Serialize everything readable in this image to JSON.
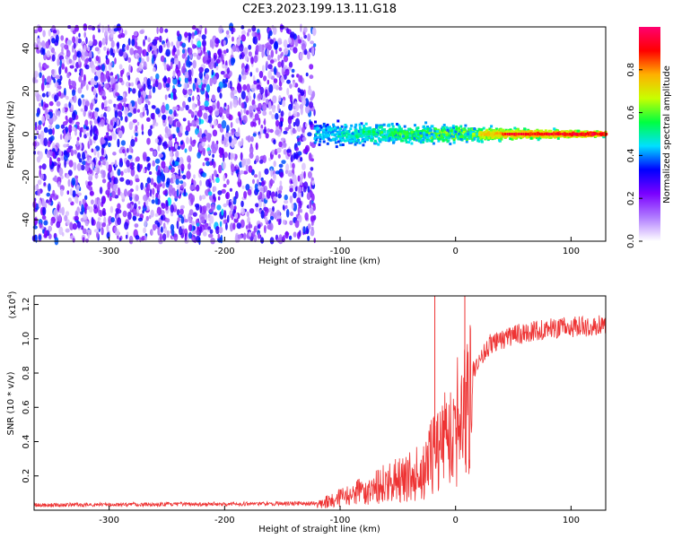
{
  "title": "C2E3.2023.199.13.11.G18",
  "chart_data": [
    {
      "type": "heatmap",
      "name": "spectrogram",
      "xlabel": "Height of straight line (km)",
      "ylabel": "Frequency (Hz)",
      "xlim": [
        -365,
        130
      ],
      "ylim": [
        -50,
        50
      ],
      "xticks": [
        -300,
        -200,
        -100,
        0,
        100
      ],
      "xtick_labels": [
        "-300",
        "-200",
        "-100",
        "0",
        "100"
      ],
      "yticks": [
        -40,
        -20,
        0,
        20,
        40
      ],
      "ytick_labels": [
        "-40",
        "-20",
        "0",
        "20",
        "40"
      ],
      "noise_region_x": [
        -365,
        -122
      ],
      "signal_region_x": [
        -122,
        130
      ],
      "signal_center_frequency": 0,
      "colorbar": {
        "label": "Normalized spectral amplitude",
        "range": [
          0,
          1
        ],
        "ticks": [
          0,
          0.2,
          0.4,
          0.6,
          0.8
        ],
        "tick_labels": [
          "0.0",
          "0.2",
          "0.4",
          "0.6",
          "0.8"
        ],
        "colors": [
          "#ffffff",
          "#b07cff",
          "#7a00ff",
          "#0000ff",
          "#00e0ff",
          "#00ff40",
          "#c8ff00",
          "#ffb000",
          "#ff0000",
          "#ff0070"
        ]
      }
    },
    {
      "type": "line",
      "name": "snr",
      "xlabel": "Height of straight line (km)",
      "ylabel": "SNR (10 * v/v)",
      "yscale_label": "(x10^4)",
      "xlim": [
        -365,
        130
      ],
      "ylim": [
        0,
        1.25
      ],
      "xticks": [
        -300,
        -200,
        -100,
        0,
        100
      ],
      "xtick_labels": [
        "-300",
        "-200",
        "-100",
        "0",
        "100"
      ],
      "yticks": [
        0.2,
        0.4,
        0.6,
        0.8,
        1.0,
        1.2
      ],
      "ytick_labels": [
        "0.2",
        "0.4",
        "0.6",
        "0.8",
        "1.0",
        "1.2"
      ],
      "color": "#ee3333",
      "series_knots": [
        {
          "x": -365,
          "y": 0.03
        },
        {
          "x": -120,
          "y": 0.04
        },
        {
          "x": -100,
          "y": 0.09
        },
        {
          "x": -80,
          "y": 0.14
        },
        {
          "x": -60,
          "y": 0.2
        },
        {
          "x": -40,
          "y": 0.24
        },
        {
          "x": -25,
          "y": 0.3
        },
        {
          "x": -15,
          "y": 0.5
        },
        {
          "x": -5,
          "y": 0.6
        },
        {
          "x": 5,
          "y": 0.7
        },
        {
          "x": 15,
          "y": 0.82
        },
        {
          "x": 30,
          "y": 0.97
        },
        {
          "x": 50,
          "y": 1.02
        },
        {
          "x": 80,
          "y": 1.06
        },
        {
          "x": 130,
          "y": 1.08
        }
      ],
      "spikes": [
        {
          "x": -18,
          "y": 1.25
        },
        {
          "x": 8,
          "y": 1.25
        },
        {
          "x": 9,
          "y": 0.22
        }
      ]
    }
  ]
}
